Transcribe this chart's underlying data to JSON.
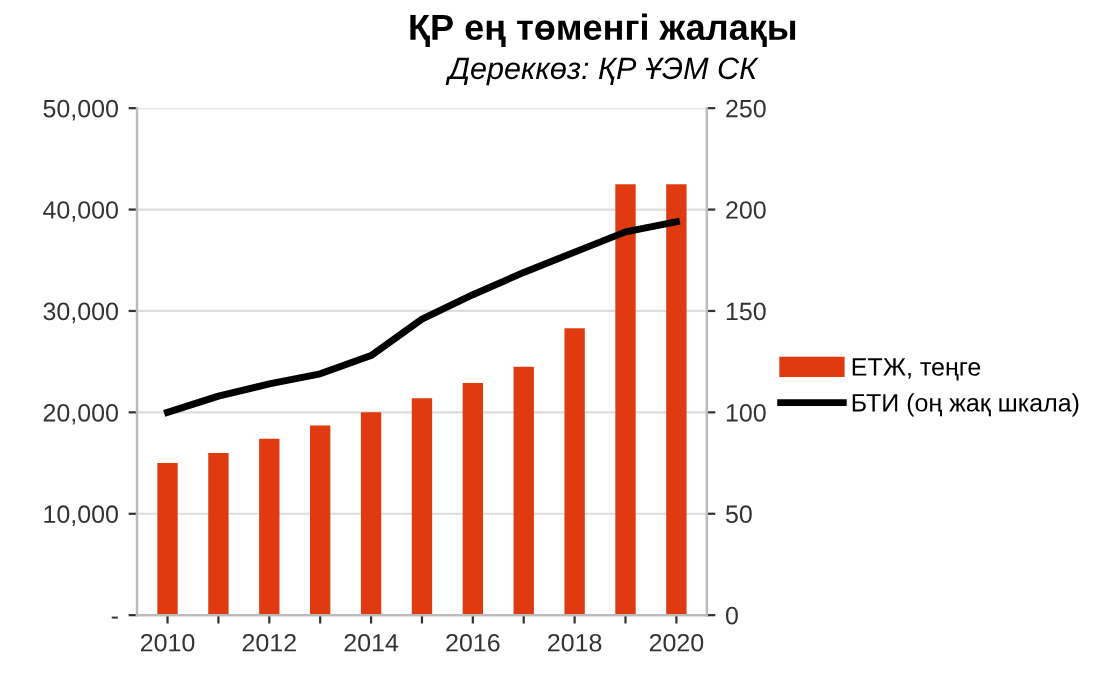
{
  "chart_data": {
    "type": "bar",
    "title": "ҚР ең төменгі жалақы",
    "subtitle": "Дереккөз: ҚР ҰЭМ СК",
    "categories": [
      "2010",
      null,
      "2012",
      null,
      "2014",
      null,
      "2016",
      null,
      "2018",
      null,
      "2020"
    ],
    "series": [
      {
        "name": "ЕТЖ, теңге",
        "color": "#e03a10",
        "values": [
          15000,
          16000,
          17400,
          18700,
          20000,
          21400,
          22900,
          24500,
          28300,
          42500,
          42500
        ]
      },
      {
        "name": "БТИ (оң жақ шкала)",
        "type": "line",
        "axis": "y2",
        "color": "#000000",
        "values": [
          100,
          108,
          114,
          119,
          128,
          146,
          158,
          169,
          179,
          189,
          194
        ]
      }
    ],
    "ylim": [
      0,
      50000
    ],
    "yticks": [
      {
        "value": 0,
        "label": "-"
      },
      {
        "value": 10000,
        "label": "10,000"
      },
      {
        "value": 20000,
        "label": "20,000"
      },
      {
        "value": 30000,
        "label": "30,000"
      },
      {
        "value": 40000,
        "label": "40,000"
      },
      {
        "value": 50000,
        "label": "50,000"
      }
    ],
    "y2lim": [
      0,
      250
    ],
    "y2ticks": [
      0,
      50,
      100,
      150,
      200,
      250
    ],
    "grid": "y",
    "legend": "right",
    "marker": "none",
    "line_style": "solid"
  }
}
